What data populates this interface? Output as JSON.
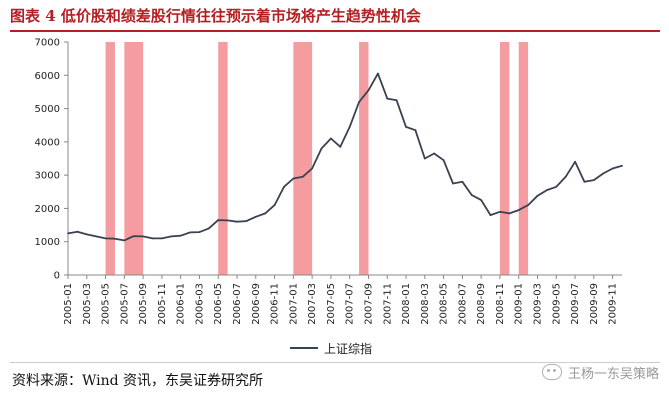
{
  "title": "图表 4 低价股和绩差股行情往往预示着市场将产生趋势性机会",
  "source": "资料来源：Wind 资讯，东吴证券研究所",
  "watermark": "王杨一东吴策略",
  "colors": {
    "title": "#b51f24",
    "line": "#3a4151",
    "band": "#f28b8f"
  },
  "chart_data": {
    "type": "line",
    "title": "图表 4 低价股和绩差股行情往往预示着市场将产生趋势性机会",
    "xlabel": "",
    "ylabel": "",
    "ylim": [
      0,
      7000
    ],
    "yticks": [
      0,
      1000,
      2000,
      3000,
      4000,
      5000,
      6000,
      7000
    ],
    "xlim": [
      "2005-01",
      "2009-12"
    ],
    "xtick_labels": [
      "2005-01",
      "2005-03",
      "2005-05",
      "2005-07",
      "2005-09",
      "2005-11",
      "2006-01",
      "2006-03",
      "2006-05",
      "2006-07",
      "2006-09",
      "2006-11",
      "2007-01",
      "2007-03",
      "2007-05",
      "2007-07",
      "2007-09",
      "2007-11",
      "2008-01",
      "2008-03",
      "2008-05",
      "2008-07",
      "2008-09",
      "2008-11",
      "2009-01",
      "2009-03",
      "2009-05",
      "2009-07",
      "2009-09",
      "2009-11"
    ],
    "legend": {
      "position": "bottom-center",
      "entries": [
        "上证综指"
      ]
    },
    "grid": false,
    "series": [
      {
        "name": "上证综指",
        "x": [
          "2005-01",
          "2005-02",
          "2005-03",
          "2005-04",
          "2005-05",
          "2005-06",
          "2005-07",
          "2005-08",
          "2005-09",
          "2005-10",
          "2005-11",
          "2005-12",
          "2006-01",
          "2006-02",
          "2006-03",
          "2006-04",
          "2006-05",
          "2006-06",
          "2006-07",
          "2006-08",
          "2006-09",
          "2006-10",
          "2006-11",
          "2006-12",
          "2007-01",
          "2007-02",
          "2007-03",
          "2007-04",
          "2007-05",
          "2007-06",
          "2007-07",
          "2007-08",
          "2007-09",
          "2007-10",
          "2007-11",
          "2007-12",
          "2008-01",
          "2008-02",
          "2008-03",
          "2008-04",
          "2008-05",
          "2008-06",
          "2008-07",
          "2008-08",
          "2008-09",
          "2008-10",
          "2008-11",
          "2008-12",
          "2009-01",
          "2009-02",
          "2009-03",
          "2009-04",
          "2009-05",
          "2009-06",
          "2009-07",
          "2009-08",
          "2009-09",
          "2009-10",
          "2009-11",
          "2009-12"
        ],
        "values": [
          1250,
          1300,
          1220,
          1160,
          1100,
          1090,
          1040,
          1170,
          1160,
          1100,
          1100,
          1160,
          1180,
          1280,
          1290,
          1400,
          1650,
          1640,
          1600,
          1620,
          1750,
          1850,
          2100,
          2650,
          2900,
          2950,
          3200,
          3800,
          4100,
          3850,
          4450,
          5200,
          5550,
          6050,
          5300,
          5250,
          4450,
          4350,
          3500,
          3650,
          3450,
          2750,
          2800,
          2400,
          2250,
          1800,
          1900,
          1850,
          1950,
          2100,
          2380,
          2550,
          2650,
          2950,
          3400,
          2800,
          2850,
          3050,
          3200,
          3280
        ]
      }
    ],
    "highlight_bands": [
      [
        "2005-05",
        "2005-06"
      ],
      [
        "2005-07",
        "2005-09"
      ],
      [
        "2006-05",
        "2006-06"
      ],
      [
        "2007-01",
        "2007-03"
      ],
      [
        "2007-08",
        "2007-09"
      ],
      [
        "2008-11",
        "2008-12"
      ],
      [
        "2009-01",
        "2009-02"
      ]
    ]
  }
}
